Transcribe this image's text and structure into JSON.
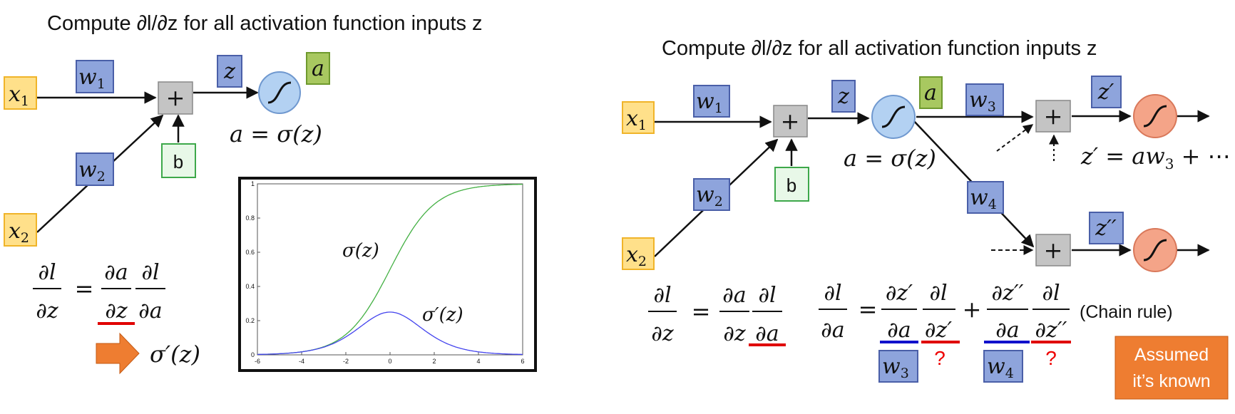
{
  "colors": {
    "input_fill": "#ffe08a",
    "input_stroke": "#f0b429",
    "weight_fill": "#8ea4dc",
    "weight_stroke": "#4a5fa8",
    "act_fill": "#a8c860",
    "act_stroke": "#6f9a2e",
    "bias_fill": "#e8f8e8",
    "bias_stroke": "#3da84a",
    "sum_fill": "#c4c4c4",
    "sigmoid_blue": "#b3d1f2",
    "sigmoid_orange": "#f4a488",
    "underline_red": "#e00000",
    "underline_blue": "#1111cc",
    "arrow_orange": "#ee7d31",
    "note_fill": "#ee7d31",
    "curve_sigma": "#43b043",
    "curve_deriv": "#4444ee"
  },
  "left": {
    "title": "Compute ∂l/∂z for all activation function inputs z",
    "x1": {
      "base": "x",
      "sub": "1"
    },
    "x2": {
      "base": "x",
      "sub": "2"
    },
    "w1": {
      "base": "w",
      "sub": "1"
    },
    "w2": {
      "base": "w",
      "sub": "2"
    },
    "plus": "+",
    "z": "z",
    "a": "a",
    "b": "b",
    "a_eq": "a = σ(z)",
    "formula": {
      "dl": "∂l",
      "dz": "∂z",
      "eq": "=",
      "da": "∂a",
      "dl2": "∂l",
      "dz2": "∂z",
      "da2": "∂a"
    },
    "result": "σ′(z)"
  },
  "plot_labels": {
    "sigma": "σ(z)",
    "sigma_prime": "σ′(z)"
  },
  "chart_data": {
    "type": "line",
    "title": "",
    "xlabel": "",
    "ylabel": "",
    "xlim": [
      -6,
      6
    ],
    "ylim": [
      0,
      1
    ],
    "x_ticks": [
      "-6",
      "-4",
      "-2",
      "0",
      "2",
      "4",
      "6"
    ],
    "y_ticks": [
      "0",
      "0.2",
      "0.4",
      "0.6",
      "0.8",
      "1"
    ],
    "series": [
      {
        "name": "σ(z)",
        "function": "sigmoid",
        "color": "#43b043"
      },
      {
        "name": "σ′(z)",
        "function": "sigmoid_derivative",
        "color": "#4444ee",
        "peak": 0.25
      }
    ]
  },
  "right": {
    "title": "Compute ∂l/∂z for all activation function inputs z",
    "x1": {
      "base": "x",
      "sub": "1"
    },
    "x2": {
      "base": "x",
      "sub": "2"
    },
    "w1": {
      "base": "w",
      "sub": "1"
    },
    "w2": {
      "base": "w",
      "sub": "2"
    },
    "w3": {
      "base": "w",
      "sub": "3"
    },
    "w4": {
      "base": "w",
      "sub": "4"
    },
    "plus": "+",
    "z": "z",
    "a": "a",
    "b": "b",
    "zp": "z′",
    "zpp": "z′′",
    "a_eq": "a = σ(z)",
    "zp_eq": "z′ = aw",
    "zp_eq_sub": "3",
    "zp_eq_tail": " + ⋯",
    "formula1": {
      "dl": "∂l",
      "dz": "∂z",
      "eq": "=",
      "da": "∂a",
      "dz2": "∂z",
      "dl2": "∂l",
      "da2": "∂a"
    },
    "formula2": {
      "dl": "∂l",
      "da": "∂a",
      "eq": "=",
      "dzp": "∂z′",
      "da_b": "∂a",
      "dl_b": "∂l",
      "dzp_b": "∂z′",
      "plus": "+",
      "dzpp": "∂z′′",
      "da_c": "∂a",
      "dl_c": "∂l",
      "dzpp_c": "∂z′′"
    },
    "chain_rule": "(Chain rule)",
    "q1": "?",
    "q2": "?",
    "note_line1": "Assumed",
    "note_line2": "it’s known"
  }
}
